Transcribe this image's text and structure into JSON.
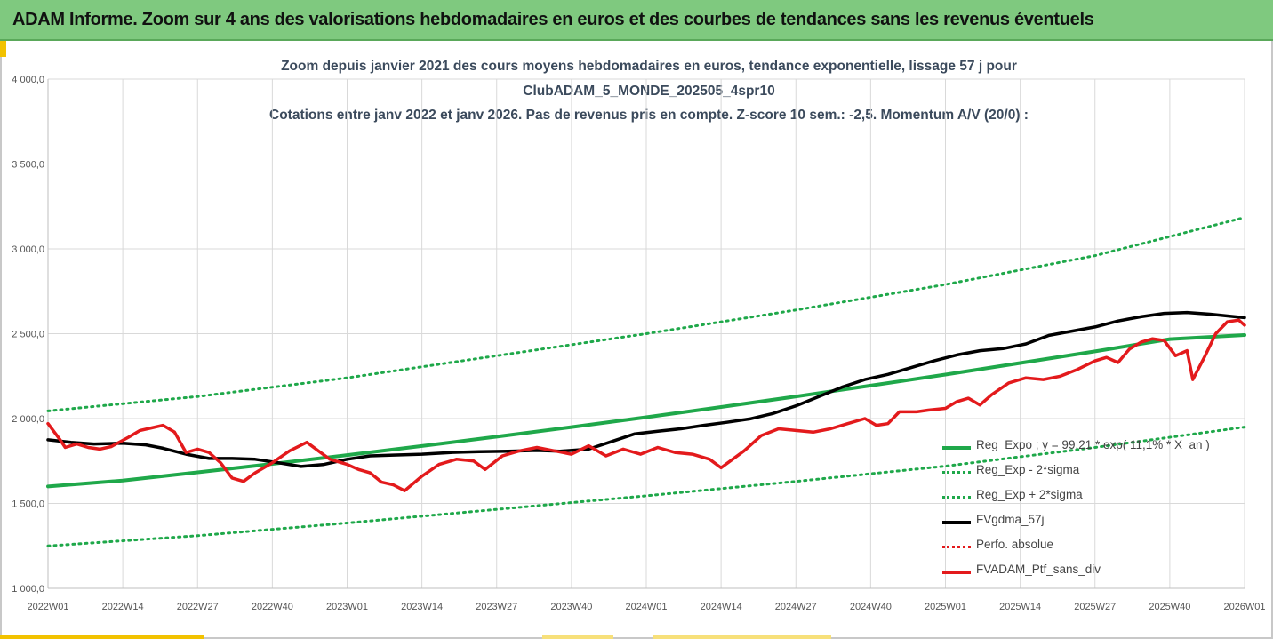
{
  "header": {
    "title": "ADAM Informe. Zoom sur 4 ans des valorisations hebdomadaires en euros et des courbes de tendances sans les revenus éventuels"
  },
  "colors": {
    "header_bg": "#7fc97f",
    "accent": "#f2c200",
    "reg_expo": "#1fa84a",
    "fvgdma": "#000000",
    "perfo": "#e31a1c",
    "fvadam": "#e31a1c"
  },
  "chart_data": {
    "type": "line",
    "title_lines": [
      "Zoom depuis janvier 2021 des cours moyens hebdomadaires  en euros, tendance exponentielle, lissage 57 j pour",
      "ClubADAM_5_MONDE_202505_4spr10",
      "Cotations entre janv 2022 et janv 2026. Pas de revenus pris en compte. Z-score 10 sem.: -2,5. Momentum A/V (20/0) :"
    ],
    "ylim": [
      1000,
      4000
    ],
    "y_ticks": [
      "1 000,0",
      "1 500,0",
      "2 000,0",
      "2 500,0",
      "3 000,0",
      "3 500,0",
      "4 000,0"
    ],
    "y_tick_values": [
      1000,
      1500,
      2000,
      2500,
      3000,
      3500,
      4000
    ],
    "x_ticks": [
      "2022W01",
      "2022W14",
      "2022W27",
      "2022W40",
      "2023W01",
      "2023W14",
      "2023W27",
      "2023W40",
      "2024W01",
      "2024W14",
      "2024W27",
      "2024W40",
      "2025W01",
      "2025W14",
      "2025W27",
      "2025W40",
      "2026W01"
    ],
    "grid": true,
    "legend_position": "bottom-right",
    "series": [
      {
        "name": "Reg_Expo ; y = 99,21 * exp( 11,1% *  X_an )",
        "style": "solid",
        "points": [
          [
            0,
            1600
          ],
          [
            13,
            1635
          ],
          [
            26,
            1683
          ],
          [
            39,
            1733
          ],
          [
            52,
            1785
          ],
          [
            65,
            1838
          ],
          [
            78,
            1893
          ],
          [
            91,
            1950
          ],
          [
            104,
            2008
          ],
          [
            117,
            2068
          ],
          [
            130,
            2130
          ],
          [
            143,
            2194
          ],
          [
            156,
            2259
          ],
          [
            169,
            2327
          ],
          [
            182,
            2396
          ],
          [
            195,
            2468
          ],
          [
            208,
            2492
          ]
        ]
      },
      {
        "name": "Reg_Exp - 2*sigma",
        "style": "dotted",
        "points": [
          [
            0,
            1250
          ],
          [
            26,
            1310
          ],
          [
            52,
            1385
          ],
          [
            78,
            1465
          ],
          [
            104,
            1545
          ],
          [
            130,
            1630
          ],
          [
            156,
            1720
          ],
          [
            182,
            1830
          ],
          [
            208,
            1950
          ]
        ]
      },
      {
        "name": "Reg_Exp + 2*sigma",
        "style": "dotted",
        "points": [
          [
            0,
            2045
          ],
          [
            26,
            2130
          ],
          [
            52,
            2240
          ],
          [
            78,
            2370
          ],
          [
            104,
            2500
          ],
          [
            130,
            2640
          ],
          [
            156,
            2790
          ],
          [
            182,
            2960
          ],
          [
            208,
            3185
          ]
        ]
      },
      {
        "name": "FVgdma_57j",
        "style": "solid",
        "points": [
          [
            0,
            1875
          ],
          [
            4,
            1860
          ],
          [
            8,
            1850
          ],
          [
            13,
            1855
          ],
          [
            17,
            1845
          ],
          [
            20,
            1825
          ],
          [
            24,
            1790
          ],
          [
            28,
            1765
          ],
          [
            32,
            1765
          ],
          [
            36,
            1760
          ],
          [
            40,
            1740
          ],
          [
            44,
            1718
          ],
          [
            48,
            1730
          ],
          [
            52,
            1760
          ],
          [
            56,
            1780
          ],
          [
            60,
            1785
          ],
          [
            65,
            1790
          ],
          [
            70,
            1800
          ],
          [
            75,
            1805
          ],
          [
            80,
            1808
          ],
          [
            85,
            1812
          ],
          [
            89,
            1808
          ],
          [
            94,
            1820
          ],
          [
            98,
            1865
          ],
          [
            102,
            1910
          ],
          [
            106,
            1925
          ],
          [
            110,
            1940
          ],
          [
            114,
            1960
          ],
          [
            118,
            1978
          ],
          [
            122,
            1998
          ],
          [
            126,
            2030
          ],
          [
            130,
            2075
          ],
          [
            134,
            2130
          ],
          [
            138,
            2185
          ],
          [
            142,
            2230
          ],
          [
            146,
            2260
          ],
          [
            150,
            2300
          ],
          [
            154,
            2340
          ],
          [
            158,
            2375
          ],
          [
            162,
            2400
          ],
          [
            166,
            2412
          ],
          [
            170,
            2440
          ],
          [
            174,
            2490
          ],
          [
            178,
            2515
          ],
          [
            182,
            2540
          ],
          [
            186,
            2575
          ],
          [
            190,
            2600
          ],
          [
            194,
            2620
          ],
          [
            198,
            2625
          ],
          [
            202,
            2615
          ],
          [
            208,
            2595
          ]
        ]
      },
      {
        "name": "Perfo. absolue",
        "style": "dotted",
        "points": []
      },
      {
        "name": "FVADAM_Ptf_sans_div",
        "style": "solid",
        "points": [
          [
            0,
            1970
          ],
          [
            2,
            1880
          ],
          [
            3,
            1830
          ],
          [
            5,
            1850
          ],
          [
            7,
            1830
          ],
          [
            9,
            1820
          ],
          [
            11,
            1835
          ],
          [
            14,
            1890
          ],
          [
            16,
            1930
          ],
          [
            18,
            1945
          ],
          [
            20,
            1960
          ],
          [
            22,
            1920
          ],
          [
            24,
            1800
          ],
          [
            26,
            1820
          ],
          [
            28,
            1800
          ],
          [
            30,
            1740
          ],
          [
            32,
            1650
          ],
          [
            34,
            1630
          ],
          [
            36,
            1680
          ],
          [
            39,
            1740
          ],
          [
            42,
            1810
          ],
          [
            45,
            1860
          ],
          [
            47,
            1810
          ],
          [
            49,
            1760
          ],
          [
            52,
            1730
          ],
          [
            54,
            1700
          ],
          [
            56,
            1680
          ],
          [
            58,
            1625
          ],
          [
            60,
            1610
          ],
          [
            62,
            1575
          ],
          [
            65,
            1660
          ],
          [
            68,
            1730
          ],
          [
            71,
            1760
          ],
          [
            74,
            1750
          ],
          [
            76,
            1700
          ],
          [
            79,
            1780
          ],
          [
            82,
            1810
          ],
          [
            85,
            1830
          ],
          [
            88,
            1810
          ],
          [
            91,
            1790
          ],
          [
            94,
            1840
          ],
          [
            97,
            1780
          ],
          [
            100,
            1820
          ],
          [
            103,
            1790
          ],
          [
            106,
            1830
          ],
          [
            109,
            1800
          ],
          [
            112,
            1790
          ],
          [
            115,
            1760
          ],
          [
            117,
            1710
          ],
          [
            119,
            1760
          ],
          [
            121,
            1810
          ],
          [
            124,
            1900
          ],
          [
            127,
            1940
          ],
          [
            130,
            1930
          ],
          [
            133,
            1920
          ],
          [
            136,
            1940
          ],
          [
            139,
            1970
          ],
          [
            142,
            2000
          ],
          [
            144,
            1960
          ],
          [
            146,
            1970
          ],
          [
            148,
            2040
          ],
          [
            151,
            2040
          ],
          [
            153,
            2050
          ],
          [
            156,
            2060
          ],
          [
            158,
            2100
          ],
          [
            160,
            2120
          ],
          [
            162,
            2080
          ],
          [
            164,
            2140
          ],
          [
            167,
            2210
          ],
          [
            170,
            2240
          ],
          [
            173,
            2230
          ],
          [
            176,
            2250
          ],
          [
            179,
            2290
          ],
          [
            182,
            2340
          ],
          [
            184,
            2360
          ],
          [
            186,
            2330
          ],
          [
            188,
            2410
          ],
          [
            190,
            2450
          ],
          [
            192,
            2470
          ],
          [
            194,
            2460
          ],
          [
            196,
            2370
          ],
          [
            198,
            2400
          ],
          [
            199,
            2230
          ],
          [
            201,
            2360
          ],
          [
            203,
            2500
          ],
          [
            205,
            2570
          ],
          [
            207,
            2580
          ],
          [
            208,
            2550
          ]
        ]
      }
    ]
  }
}
